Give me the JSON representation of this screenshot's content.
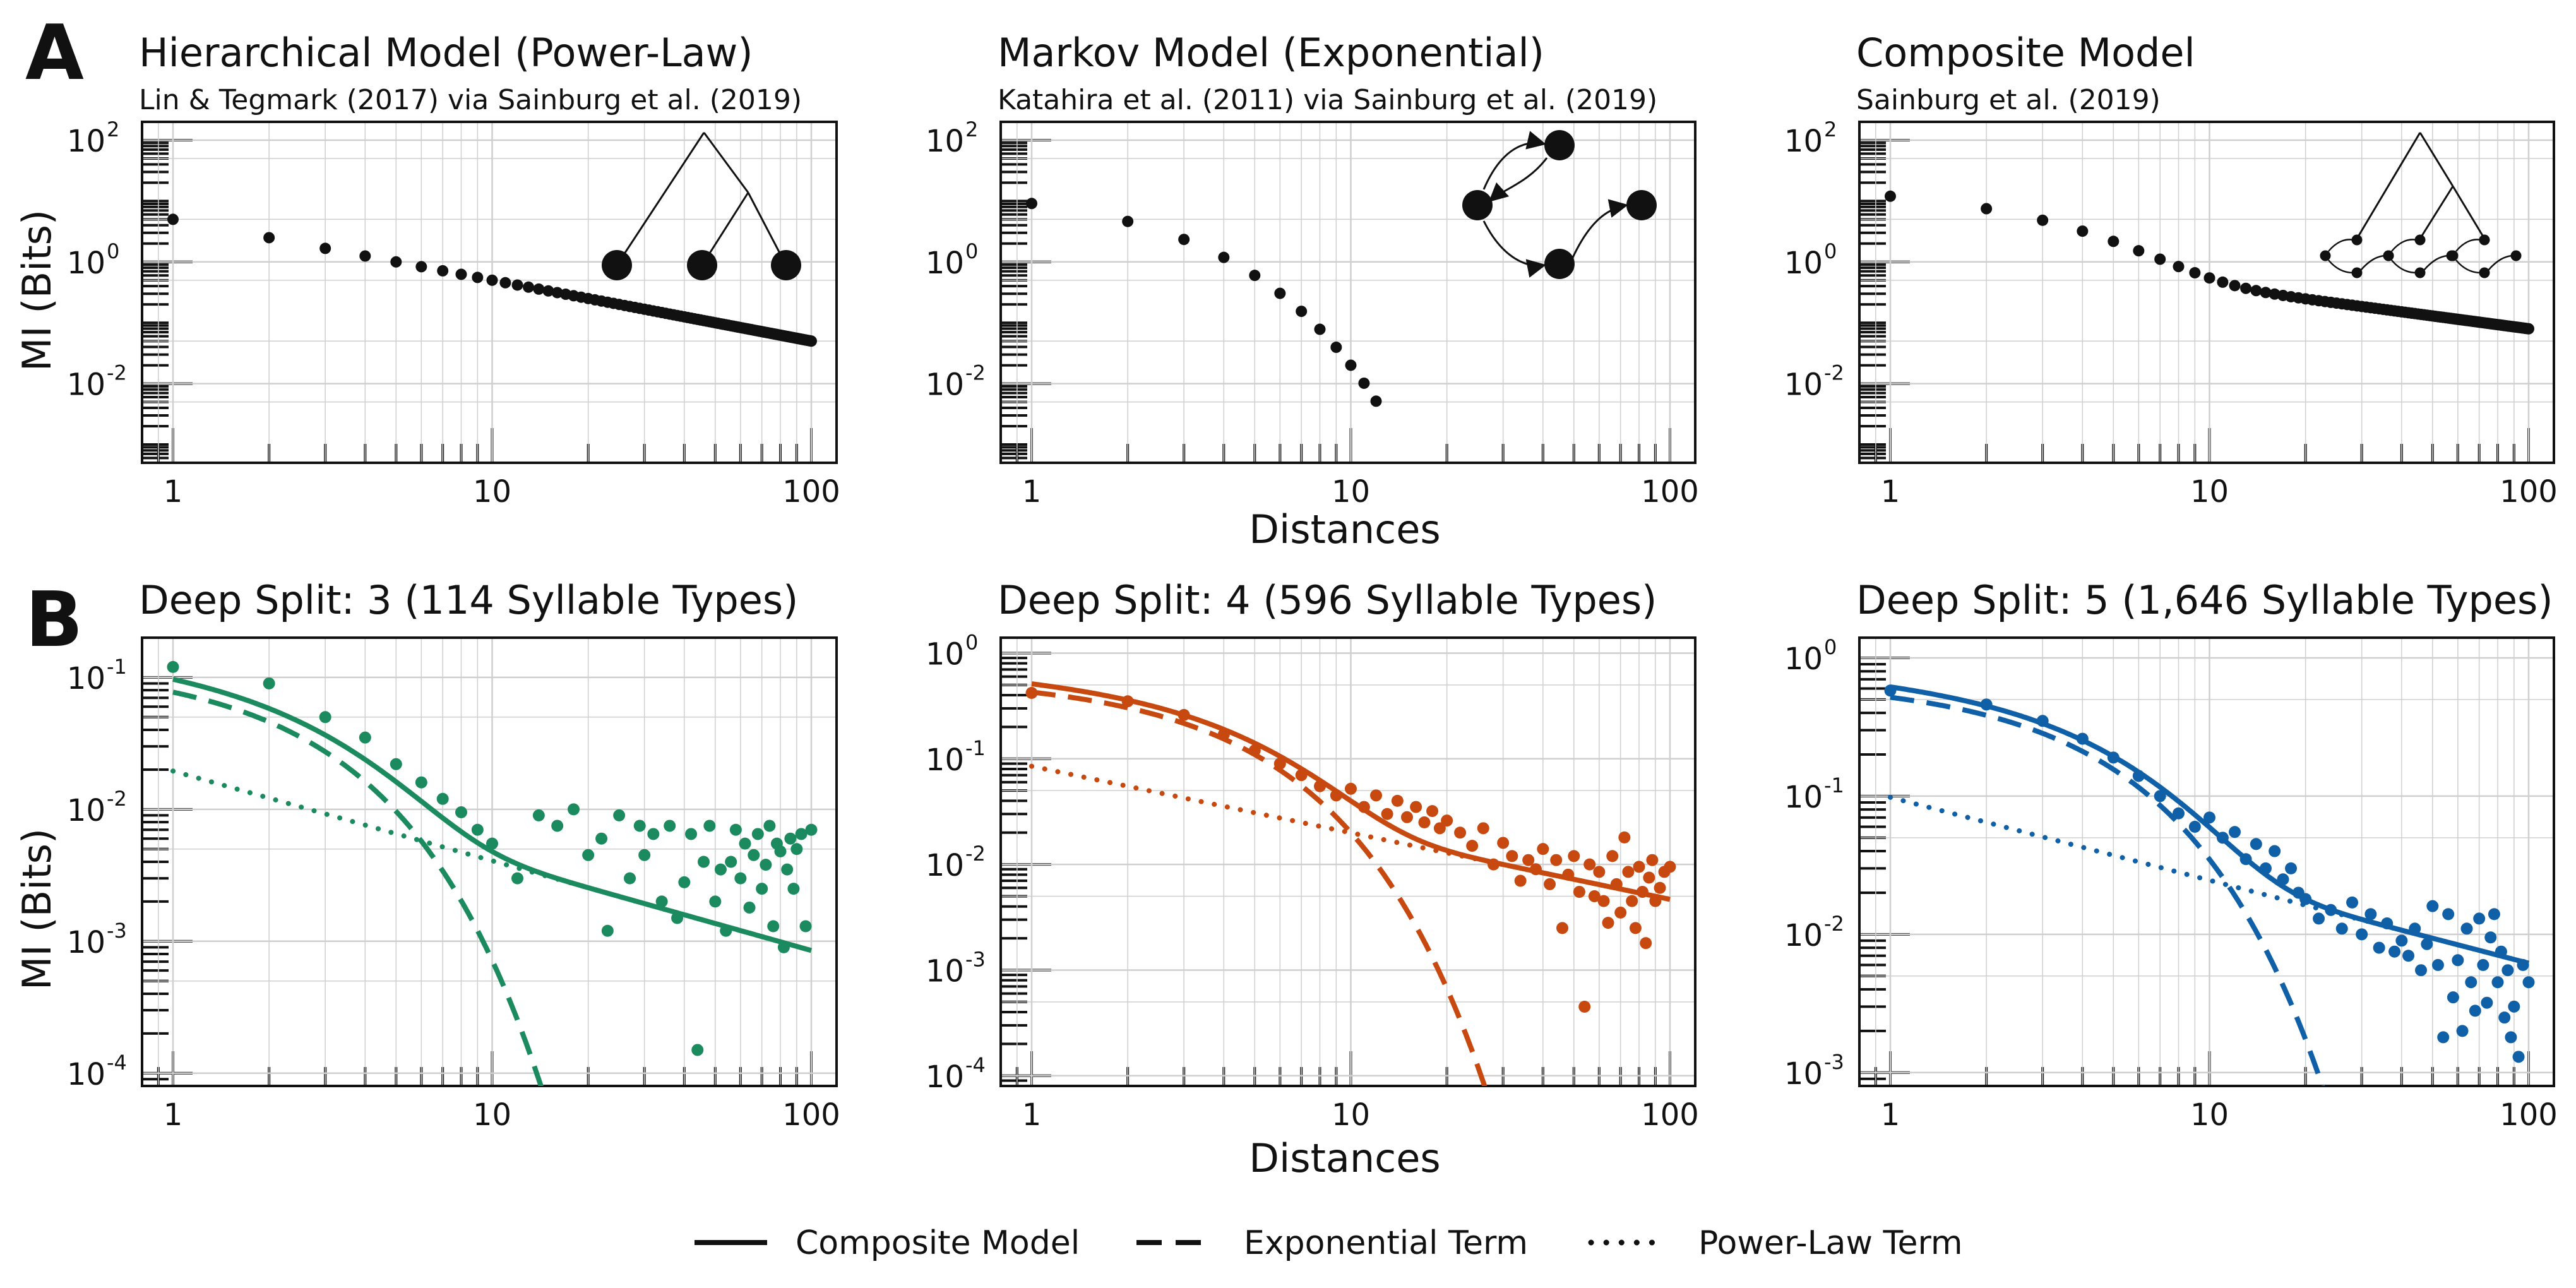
{
  "figure": {
    "panel_labels": [
      "A",
      "B"
    ],
    "ylabel": "MI (Bits)",
    "xlabel": "Distances",
    "x_tick_labels": [
      "1",
      "10",
      "100"
    ],
    "legend": {
      "placement": "bottom-center",
      "items": [
        {
          "label": "Composite Model",
          "style": "solid"
        },
        {
          "label": "Exponential Term",
          "style": "dashed"
        },
        {
          "label": "Power-Law Term",
          "style": "dotted"
        }
      ]
    },
    "colors": {
      "row_a": "#111111",
      "deep_split_3": "#1b8a5e",
      "deep_split_4": "#c8490f",
      "deep_split_5": "#1060a8",
      "grid": "#cfcfcf"
    },
    "insets": [
      "hierarchical tree",
      "markov graph",
      "composite tree with markov leaves"
    ]
  },
  "chart_data": [
    {
      "type": "scatter",
      "title": "Hierarchical Model (Power-Law)",
      "subtitle": "Lin & Tegmark (2017) via Sainburg et al. (2019)",
      "xscale": "log",
      "yscale": "log",
      "xlim": [
        0.8,
        120
      ],
      "ylim": [
        0.0005,
        200
      ],
      "y_tick_labels": [
        {
          "v": 100,
          "b": "10",
          "e": "2"
        },
        {
          "v": 1,
          "b": "10",
          "e": "0"
        },
        {
          "v": 0.01,
          "b": "10",
          "e": "-2"
        }
      ],
      "grid": true,
      "series": [
        {
          "kind": "points",
          "model": "power",
          "a": 5.0,
          "b": 1.0,
          "n": 100
        }
      ]
    },
    {
      "type": "scatter",
      "title": "Markov Model (Exponential)",
      "subtitle": "Katahira et al. (2011) via Sainburg et al. (2019)",
      "xscale": "log",
      "yscale": "log",
      "xlim": [
        0.8,
        120
      ],
      "ylim": [
        0.0005,
        200
      ],
      "y_tick_labels": [
        {
          "v": 100,
          "b": "10",
          "e": "2"
        },
        {
          "v": 1,
          "b": "10",
          "e": "0"
        },
        {
          "v": 0.01,
          "b": "10",
          "e": "-2"
        }
      ],
      "grid": true,
      "series": [
        {
          "kind": "points",
          "model": "exp",
          "a": 18.0,
          "c": 0.68,
          "n": 12
        }
      ]
    },
    {
      "type": "scatter",
      "title": "Composite Model",
      "subtitle": "Sainburg et al. (2019)",
      "xscale": "log",
      "yscale": "log",
      "xlim": [
        0.8,
        120
      ],
      "ylim": [
        0.0005,
        200
      ],
      "y_tick_labels": [
        {
          "v": 100,
          "b": "10",
          "e": "2"
        },
        {
          "v": 1,
          "b": "10",
          "e": "0"
        },
        {
          "v": 0.01,
          "b": "10",
          "e": "-2"
        }
      ],
      "grid": true,
      "series": [
        {
          "kind": "points",
          "model": "composite",
          "a": 16.0,
          "c": 0.47,
          "pa": 2.0,
          "pb": 0.7,
          "n": 100
        }
      ]
    },
    {
      "type": "scatter",
      "title": "Deep Split: 3 (114 Syllable Types)",
      "xscale": "log",
      "yscale": "log",
      "xlim": [
        0.8,
        120
      ],
      "ylim": [
        8e-05,
        0.2
      ],
      "y_tick_labels": [
        {
          "v": 0.1,
          "b": "10",
          "e": "-1"
        },
        {
          "v": 0.01,
          "b": "10",
          "e": "-2"
        },
        {
          "v": 0.001,
          "b": "10",
          "e": "-3"
        },
        {
          "v": 0.0001,
          "b": "10",
          "e": "-4"
        }
      ],
      "grid": true,
      "color_key": "deep_split_3",
      "fit": {
        "exp_a": 0.13,
        "exp_c": 0.52,
        "pow_a": 0.0195,
        "pow_b": 0.68
      },
      "scatter_x": [
        1,
        2,
        3,
        4,
        5,
        6,
        7,
        8,
        9,
        10,
        12,
        14,
        16,
        18,
        20,
        22,
        23,
        25,
        27,
        29,
        30,
        32,
        34,
        36,
        38,
        40,
        42,
        44,
        46,
        48,
        50,
        52,
        54,
        56,
        58,
        60,
        62,
        64,
        66,
        68,
        70,
        72,
        74,
        76,
        78,
        80,
        82,
        84,
        86,
        88,
        90,
        93,
        96,
        100
      ],
      "scatter_y": [
        0.12,
        0.09,
        0.05,
        0.035,
        0.022,
        0.016,
        0.012,
        0.0095,
        0.007,
        0.0055,
        0.003,
        0.009,
        0.0075,
        0.01,
        0.0045,
        0.006,
        0.0012,
        0.009,
        0.003,
        0.0075,
        0.0045,
        0.0065,
        0.002,
        0.0075,
        0.0015,
        0.0028,
        0.0065,
        0.00015,
        0.004,
        0.0075,
        0.002,
        0.0035,
        0.0012,
        0.004,
        0.007,
        0.003,
        0.0055,
        0.0018,
        0.0045,
        0.0065,
        0.0025,
        0.0038,
        0.0075,
        0.0013,
        0.0055,
        0.0048,
        0.0009,
        0.0035,
        0.006,
        0.0025,
        0.005,
        0.0065,
        0.0013,
        0.007
      ]
    },
    {
      "type": "scatter",
      "title": "Deep Split: 4 (596 Syllable Types)",
      "xscale": "log",
      "yscale": "log",
      "xlim": [
        0.8,
        120
      ],
      "ylim": [
        8e-05,
        1.4
      ],
      "y_tick_labels": [
        {
          "v": 1,
          "b": "10",
          "e": "0"
        },
        {
          "v": 0.1,
          "b": "10",
          "e": "-1"
        },
        {
          "v": 0.01,
          "b": "10",
          "e": "-2"
        },
        {
          "v": 0.001,
          "b": "10",
          "e": "-3"
        },
        {
          "v": 0.0001,
          "b": "10",
          "e": "-4"
        }
      ],
      "grid": true,
      "color_key": "deep_split_4",
      "fit": {
        "exp_a": 0.6,
        "exp_c": 0.34,
        "pow_a": 0.085,
        "pow_b": 0.63
      },
      "scatter_x": [
        1,
        2,
        3,
        4,
        5,
        6,
        7,
        8,
        9,
        10,
        11,
        12,
        13,
        14,
        15,
        16,
        17,
        18,
        19,
        20,
        22,
        24,
        26,
        28,
        30,
        32,
        34,
        36,
        38,
        40,
        42,
        44,
        46,
        48,
        50,
        52,
        54,
        56,
        58,
        60,
        62,
        64,
        66,
        68,
        70,
        72,
        74,
        76,
        78,
        80,
        82,
        84,
        86,
        88,
        90,
        93,
        96,
        100
      ],
      "scatter_y": [
        0.42,
        0.35,
        0.26,
        0.17,
        0.12,
        0.09,
        0.07,
        0.055,
        0.045,
        0.052,
        0.035,
        0.045,
        0.03,
        0.04,
        0.028,
        0.035,
        0.025,
        0.032,
        0.022,
        0.026,
        0.02,
        0.015,
        0.022,
        0.01,
        0.016,
        0.012,
        0.007,
        0.011,
        0.009,
        0.014,
        0.0065,
        0.011,
        0.0025,
        0.008,
        0.012,
        0.0055,
        0.00045,
        0.01,
        0.005,
        0.0085,
        0.0045,
        0.0028,
        0.012,
        0.0065,
        0.0035,
        0.018,
        0.0085,
        0.0045,
        0.0025,
        0.0095,
        0.0055,
        0.0018,
        0.0075,
        0.011,
        0.0045,
        0.006,
        0.0085,
        0.0095
      ]
    },
    {
      "type": "scatter",
      "title": "Deep Split: 5 (1,646 Syllable Types)",
      "xscale": "log",
      "yscale": "log",
      "xlim": [
        0.8,
        120
      ],
      "ylim": [
        0.0008,
        1.4
      ],
      "y_tick_labels": [
        {
          "v": 1,
          "b": "10",
          "e": "0"
        },
        {
          "v": 0.1,
          "b": "10",
          "e": "-1"
        },
        {
          "v": 0.01,
          "b": "10",
          "e": "-2"
        },
        {
          "v": 0.001,
          "b": "10",
          "e": "-3"
        }
      ],
      "grid": true,
      "color_key": "deep_split_5",
      "fit": {
        "exp_a": 0.7,
        "exp_c": 0.3,
        "pow_a": 0.098,
        "pow_b": 0.6
      },
      "scatter_x": [
        1,
        2,
        3,
        4,
        5,
        6,
        7,
        8,
        9,
        10,
        11,
        12,
        13,
        14,
        15,
        16,
        17,
        18,
        19,
        20,
        22,
        24,
        26,
        28,
        30,
        32,
        34,
        36,
        38,
        40,
        42,
        44,
        46,
        48,
        50,
        52,
        54,
        56,
        58,
        60,
        62,
        64,
        66,
        68,
        70,
        72,
        74,
        76,
        78,
        80,
        82,
        84,
        86,
        88,
        90,
        93,
        96,
        100
      ],
      "scatter_y": [
        0.58,
        0.46,
        0.35,
        0.26,
        0.19,
        0.14,
        0.1,
        0.075,
        0.06,
        0.07,
        0.05,
        0.055,
        0.035,
        0.045,
        0.03,
        0.04,
        0.025,
        0.03,
        0.02,
        0.018,
        0.013,
        0.015,
        0.011,
        0.017,
        0.01,
        0.014,
        0.008,
        0.012,
        0.0075,
        0.009,
        0.007,
        0.011,
        0.0055,
        0.0085,
        0.016,
        0.006,
        0.0018,
        0.014,
        0.0035,
        0.0065,
        0.002,
        0.011,
        0.0045,
        0.0028,
        0.013,
        0.006,
        0.0032,
        0.0095,
        0.014,
        0.0045,
        0.0075,
        0.0025,
        0.0055,
        0.0018,
        0.003,
        0.0013,
        0.006,
        0.0045
      ]
    }
  ]
}
